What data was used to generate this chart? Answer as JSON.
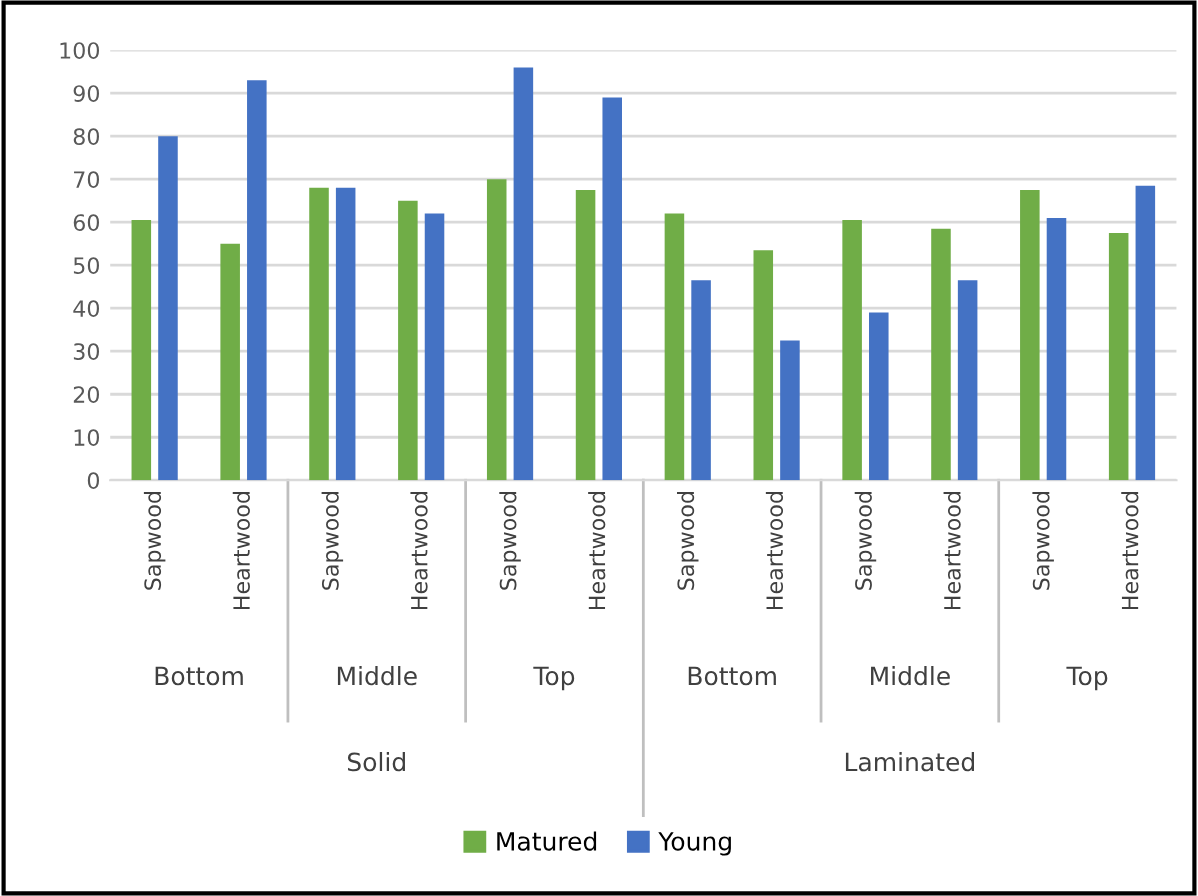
{
  "chart_data": {
    "type": "bar",
    "categories": [
      "Sapwood",
      "Heartwood",
      "Sapwood",
      "Heartwood",
      "Sapwood",
      "Heartwood",
      "Sapwood",
      "Heartwood",
      "Sapwood",
      "Heartwood",
      "Sapwood",
      "Heartwood"
    ],
    "series": [
      {
        "name": "Matured",
        "color": "#70ad47",
        "values": [
          60.5,
          55,
          68,
          65,
          70,
          67.5,
          62,
          53.5,
          60.5,
          58.5,
          67.5,
          57.5
        ]
      },
      {
        "name": "Young",
        "color": "#4472c4",
        "values": [
          80,
          93,
          68,
          62,
          96,
          89,
          46.5,
          32.5,
          39,
          46.5,
          61,
          68.5
        ]
      }
    ],
    "annotations": [
      "Bottom",
      "Middle",
      "Top",
      "Bottom",
      "Middle",
      "Top",
      "Solid",
      "Laminated"
    ],
    "ylim": [
      0,
      100
    ],
    "yticks": [
      0,
      10,
      20,
      30,
      40,
      50,
      60,
      70,
      80,
      90,
      100
    ],
    "grid": "y",
    "legend": "bottom"
  }
}
